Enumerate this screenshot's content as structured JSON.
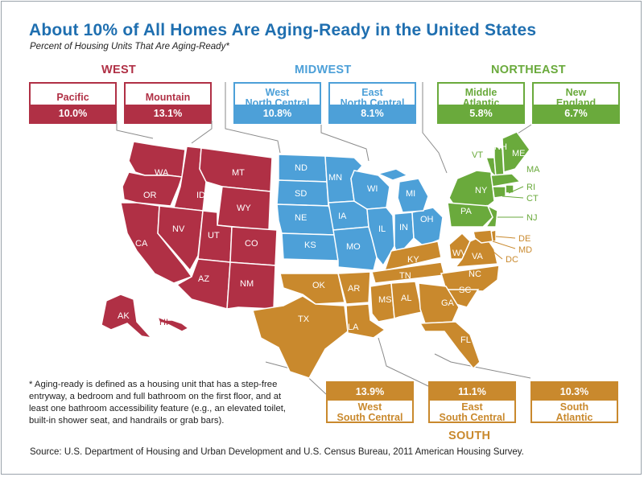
{
  "title": "About 10% of All Homes Are Aging-Ready in the United States",
  "subtitle": "Percent of Housing Units That Are Aging-Ready*",
  "colors": {
    "west": "#b03045",
    "midwest": "#4da0d8",
    "northeast": "#6aaa3c",
    "south": "#c9892d",
    "title": "#1f6fb0"
  },
  "regions": {
    "west": {
      "label": "WEST",
      "divisions": [
        {
          "name": "Pacific",
          "value": "10.0%"
        },
        {
          "name": "Mountain",
          "value": "13.1%"
        }
      ]
    },
    "midwest": {
      "label": "MIDWEST",
      "divisions": [
        {
          "name": "West North Central",
          "name_line1": "West",
          "name_line2": "North Central",
          "value": "10.8%"
        },
        {
          "name": "East North Central",
          "name_line1": "East",
          "name_line2": "North Central",
          "value": "8.1%"
        }
      ]
    },
    "northeast": {
      "label": "NORTHEAST",
      "divisions": [
        {
          "name": "Middle Atlantic",
          "name_line1": "Middle",
          "name_line2": "Atlantic",
          "value": "5.8%"
        },
        {
          "name": "New England",
          "name_line1": "New",
          "name_line2": "England",
          "value": "6.7%"
        }
      ]
    },
    "south": {
      "label": "SOUTH",
      "divisions": [
        {
          "name": "West South Central",
          "name_line1": "West",
          "name_line2": "South Central",
          "value": "13.9%"
        },
        {
          "name": "East South Central",
          "name_line1": "East",
          "name_line2": "South Central",
          "value": "11.1%"
        },
        {
          "name": "South Atlantic",
          "name_line1": "South",
          "name_line2": "Atlantic",
          "value": "10.3%"
        }
      ]
    }
  },
  "states": {
    "WA": "WA",
    "OR": "OR",
    "CA": "CA",
    "AK": "AK",
    "HI": "HI",
    "MT": "MT",
    "ID": "ID",
    "WY": "WY",
    "NV": "NV",
    "UT": "UT",
    "CO": "CO",
    "AZ": "AZ",
    "NM": "NM",
    "ND": "ND",
    "SD": "SD",
    "NE": "NE",
    "KS": "KS",
    "MN": "MN",
    "IA": "IA",
    "MO": "MO",
    "WI": "WI",
    "MI": "MI",
    "IL": "IL",
    "IN": "IN",
    "OH": "OH",
    "NY": "NY",
    "PA": "PA",
    "NJ": "NJ",
    "VT": "VT",
    "NH": "NH",
    "ME": "ME",
    "MA": "MA",
    "RI": "RI",
    "CT": "CT",
    "OK": "OK",
    "TX": "TX",
    "AR": "AR",
    "LA": "LA",
    "KY": "KY",
    "TN": "TN",
    "MS": "MS",
    "AL": "AL",
    "WV": "WV",
    "VA": "VA",
    "NC": "NC",
    "SC": "SC",
    "GA": "GA",
    "FL": "FL",
    "DE": "DE",
    "MD": "MD",
    "DC": "DC"
  },
  "footnote": "* Aging-ready is defined as a housing unit that has a step-free entryway, a bedroom and full bathroom on the first floor, and at least one bathroom accessibility feature (e.g., an elevated toilet, built-in shower seat, and handrails or grab bars).",
  "source": "Source: U.S. Department of Housing and Urban Development and U.S. Census Bureau, 2011 American Housing Survey."
}
